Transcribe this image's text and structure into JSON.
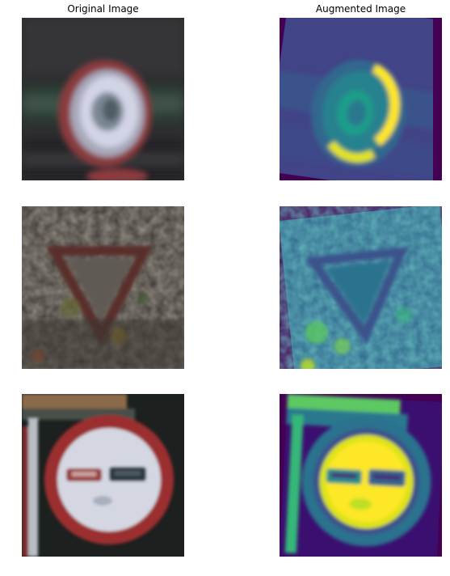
{
  "titles": {
    "original": "Original Image",
    "augmented": "Augmented Image"
  },
  "images": [
    {
      "row": 1,
      "original_subject": "red-ring-circular-sign",
      "augmented_subject": "viridis-colormap-rotated-ring-sign"
    },
    {
      "row": 2,
      "original_subject": "yield-triangle-sign",
      "augmented_subject": "viridis-colormap-rotated-yield-sign"
    },
    {
      "row": 3,
      "original_subject": "no-overtaking-sign",
      "augmented_subject": "viridis-colormap-no-overtaking-sign"
    }
  ],
  "colors": {
    "viridis_dark": "#440154",
    "viridis_blue": "#3b528b",
    "viridis_teal": "#21908d",
    "viridis_green": "#5dc962",
    "viridis_yellow": "#fde725"
  }
}
